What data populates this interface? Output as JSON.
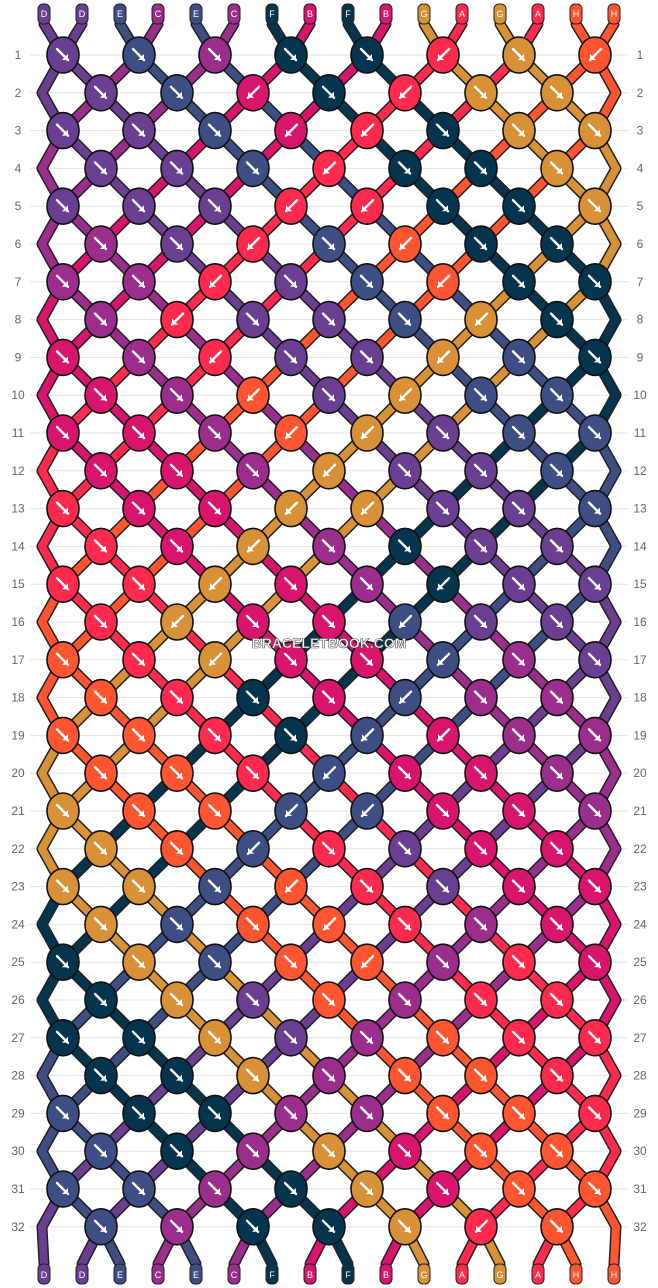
{
  "title": "",
  "watermark": "BRACELETBOOK.COM",
  "strands_top": [
    "D",
    "D",
    "E",
    "C",
    "E",
    "C",
    "F",
    "B",
    "F",
    "B",
    "G",
    "A",
    "G",
    "A",
    "H",
    "H"
  ],
  "strands_bottom": [
    "D",
    "D",
    "E",
    "C",
    "E",
    "C",
    "F",
    "B",
    "F",
    "B",
    "G",
    "A",
    "G",
    "A",
    "H",
    "H"
  ],
  "strand_colors": {
    "A": "#FF2A4E",
    "B": "#D8146C",
    "C": "#9B2E8C",
    "D": "#6A3F92",
    "E": "#3D4E85",
    "F": "#05344F",
    "G": "#D99137",
    "H": "#FF5530"
  },
  "row_numbers": [
    "1",
    "2",
    "3",
    "4",
    "5",
    "6",
    "7",
    "8",
    "9",
    "10",
    "11",
    "12",
    "13",
    "14",
    "15",
    "16",
    "17",
    "18",
    "19",
    "20",
    "21",
    "22",
    "23",
    "24",
    "25",
    "26",
    "27",
    "28",
    "29",
    "30",
    "31",
    "32"
  ],
  "chart_data": {
    "type": "friendship-bracelet-pattern",
    "rows": 32,
    "strings": 16,
    "knot_colors": [
      [
        "D",
        "E",
        "C",
        "F",
        "F",
        "A",
        "G",
        "H"
      ],
      [
        "D",
        "E",
        "B",
        "F",
        "A",
        "G",
        "G"
      ],
      [
        "D",
        "D",
        "E",
        "B",
        "A",
        "F",
        "G",
        "G"
      ],
      [
        "D",
        "D",
        "E",
        "A",
        "F",
        "F",
        "G"
      ],
      [
        "D",
        "D",
        "D",
        "A",
        "A",
        "F",
        "F",
        "G"
      ],
      [
        "C",
        "D",
        "A",
        "E",
        "H",
        "F",
        "F"
      ],
      [
        "C",
        "C",
        "A",
        "D",
        "E",
        "H",
        "F",
        "F"
      ],
      [
        "C",
        "A",
        "D",
        "D",
        "E",
        "G",
        "F"
      ],
      [
        "B",
        "C",
        "A",
        "D",
        "D",
        "G",
        "E",
        "F"
      ],
      [
        "B",
        "C",
        "H",
        "D",
        "G",
        "E",
        "E"
      ],
      [
        "B",
        "B",
        "C",
        "H",
        "G",
        "D",
        "E",
        "E"
      ],
      [
        "B",
        "B",
        "C",
        "G",
        "D",
        "D",
        "E"
      ],
      [
        "A",
        "B",
        "B",
        "G",
        "G",
        "D",
        "D",
        "E"
      ],
      [
        "A",
        "B",
        "G",
        "C",
        "F",
        "D",
        "D"
      ],
      [
        "A",
        "A",
        "G",
        "B",
        "C",
        "F",
        "D",
        "D"
      ],
      [
        "A",
        "G",
        "B",
        "B",
        "E",
        "D",
        "D"
      ],
      [
        "H",
        "A",
        "G",
        "B",
        "B",
        "E",
        "C",
        "D"
      ],
      [
        "H",
        "A",
        "F",
        "B",
        "E",
        "C",
        "C"
      ],
      [
        "H",
        "H",
        "A",
        "F",
        "E",
        "B",
        "C",
        "C"
      ],
      [
        "H",
        "H",
        "A",
        "E",
        "B",
        "B",
        "C"
      ],
      [
        "G",
        "H",
        "H",
        "E",
        "E",
        "B",
        "B",
        "C"
      ],
      [
        "G",
        "H",
        "E",
        "A",
        "D",
        "B",
        "B"
      ],
      [
        "G",
        "G",
        "E",
        "H",
        "A",
        "D",
        "B",
        "B"
      ],
      [
        "G",
        "E",
        "H",
        "H",
        "A",
        "C",
        "B"
      ],
      [
        "F",
        "G",
        "E",
        "H",
        "H",
        "C",
        "A",
        "B"
      ],
      [
        "F",
        "G",
        "D",
        "H",
        "C",
        "A",
        "A"
      ],
      [
        "F",
        "F",
        "G",
        "D",
        "C",
        "H",
        "A",
        "A"
      ],
      [
        "F",
        "F",
        "G",
        "C",
        "H",
        "H",
        "A"
      ],
      [
        "E",
        "F",
        "F",
        "C",
        "C",
        "H",
        "H",
        "A"
      ],
      [
        "E",
        "F",
        "C",
        "G",
        "B",
        "H",
        "H"
      ],
      [
        "E",
        "E",
        "C",
        "F",
        "G",
        "B",
        "H",
        "H"
      ],
      [
        "E",
        "C",
        "F",
        "F",
        "G",
        "A",
        "H"
      ]
    ],
    "knot_directions": [
      [
        "r",
        "r",
        "r",
        "r",
        "r",
        "l",
        "r",
        "l"
      ],
      [
        "r",
        "r",
        "l",
        "r",
        "l",
        "r",
        "r"
      ],
      [
        "r",
        "r",
        "r",
        "l",
        "l",
        "r",
        "r",
        "r"
      ],
      [
        "r",
        "r",
        "r",
        "l",
        "r",
        "r",
        "r"
      ],
      [
        "r",
        "r",
        "r",
        "l",
        "l",
        "r",
        "r",
        "r"
      ],
      [
        "r",
        "r",
        "l",
        "r",
        "l",
        "r",
        "r"
      ],
      [
        "r",
        "r",
        "l",
        "r",
        "r",
        "l",
        "r",
        "r"
      ],
      [
        "r",
        "l",
        "r",
        "r",
        "r",
        "l",
        "r"
      ],
      [
        "r",
        "r",
        "l",
        "r",
        "r",
        "l",
        "r",
        "r"
      ],
      [
        "r",
        "r",
        "l",
        "r",
        "l",
        "r",
        "r"
      ],
      [
        "r",
        "r",
        "r",
        "l",
        "l",
        "r",
        "r",
        "r"
      ],
      [
        "r",
        "r",
        "r",
        "l",
        "r",
        "r",
        "r"
      ],
      [
        "r",
        "r",
        "r",
        "l",
        "l",
        "r",
        "r",
        "r"
      ],
      [
        "r",
        "r",
        "l",
        "r",
        "r",
        "r",
        "r"
      ],
      [
        "r",
        "r",
        "l",
        "r",
        "r",
        "l",
        "r",
        "r"
      ],
      [
        "r",
        "l",
        "r",
        "r",
        "l",
        "r",
        "r"
      ],
      [
        "r",
        "r",
        "l",
        "r",
        "r",
        "l",
        "r",
        "r"
      ],
      [
        "r",
        "r",
        "r",
        "r",
        "l",
        "r",
        "r"
      ],
      [
        "r",
        "r",
        "r",
        "r",
        "l",
        "l",
        "r",
        "r"
      ],
      [
        "r",
        "r",
        "r",
        "l",
        "r",
        "r",
        "r"
      ],
      [
        "r",
        "r",
        "r",
        "l",
        "l",
        "r",
        "r",
        "r"
      ],
      [
        "r",
        "r",
        "l",
        "r",
        "r",
        "r",
        "r"
      ],
      [
        "r",
        "r",
        "r",
        "l",
        "r",
        "r",
        "r",
        "r"
      ],
      [
        "r",
        "r",
        "r",
        "l",
        "r",
        "r",
        "r"
      ],
      [
        "r",
        "r",
        "r",
        "r",
        "l",
        "r",
        "r",
        "r"
      ],
      [
        "r",
        "r",
        "r",
        "r",
        "r",
        "r",
        "r"
      ],
      [
        "r",
        "r",
        "r",
        "r",
        "r",
        "r",
        "r",
        "r"
      ],
      [
        "r",
        "r",
        "r",
        "r",
        "r",
        "r",
        "r"
      ],
      [
        "r",
        "r",
        "r",
        "r",
        "r",
        "r",
        "r",
        "r"
      ],
      [
        "r",
        "r",
        "r",
        "r",
        "r",
        "r",
        "r"
      ],
      [
        "r",
        "r",
        "r",
        "r",
        "r",
        "r",
        "r",
        "r"
      ],
      [
        "r",
        "r",
        "r",
        "r",
        "r",
        "l",
        "r"
      ]
    ]
  }
}
